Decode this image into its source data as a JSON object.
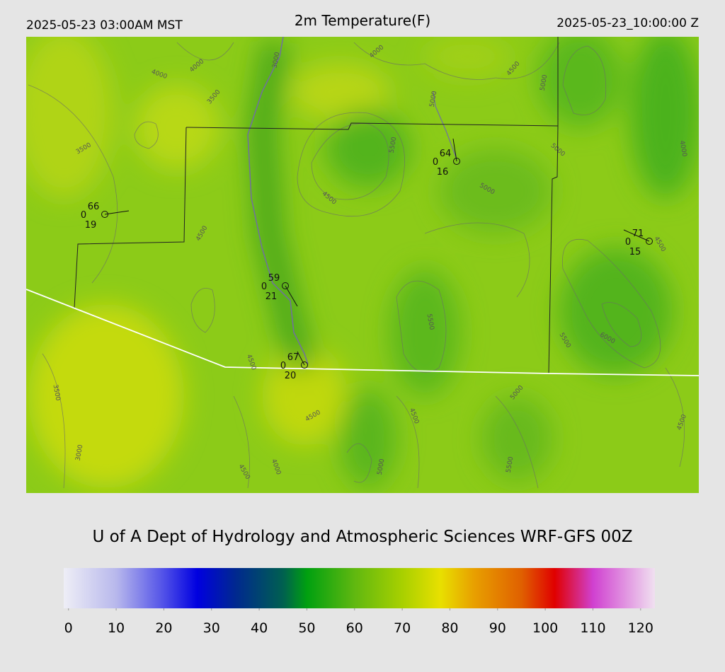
{
  "header": {
    "local_time": "2025-05-23 03:00AM MST",
    "title": "2m Temperature(F)",
    "valid_time": "2025-05-23_10:00:00 Z"
  },
  "contour_labels": [
    "4000",
    "4000",
    "3500",
    "3000",
    "4000",
    "4500",
    "5000",
    "5000",
    "3500",
    "5500",
    "4500",
    "5000",
    "5000",
    "4000",
    "4500",
    "4500",
    "5500",
    "6000",
    "5500",
    "4500",
    "5000",
    "3500",
    "4500",
    "4500",
    "4500",
    "3000",
    "4500",
    "4000",
    "5000",
    "5500"
  ],
  "stations": [
    {
      "temperature": 66,
      "wind": 0,
      "dewpoint": 19
    },
    {
      "temperature": 64,
      "wind": 0,
      "dewpoint": 16
    },
    {
      "temperature": 71,
      "wind": 0,
      "dewpoint": 15
    },
    {
      "temperature": 59,
      "wind": 0,
      "dewpoint": 21
    },
    {
      "temperature": 67,
      "wind": 0,
      "dewpoint": 20
    }
  ],
  "footer": "U of A Dept of Hydrology and Atmospheric Sciences WRF-GFS 00Z",
  "colorbar": {
    "lim": [
      -1,
      123
    ],
    "ticks": [
      0,
      10,
      20,
      30,
      40,
      50,
      60,
      70,
      80,
      90,
      100,
      110,
      120
    ],
    "stops": [
      {
        "value": -1,
        "color": "#eeeef6"
      },
      {
        "value": 10,
        "color": "#b8b8ec"
      },
      {
        "value": 20,
        "color": "#5050e8"
      },
      {
        "value": 27,
        "color": "#0000e0"
      },
      {
        "value": 35,
        "color": "#002890"
      },
      {
        "value": 45,
        "color": "#006050"
      },
      {
        "value": 50,
        "color": "#00a010"
      },
      {
        "value": 60,
        "color": "#60b810"
      },
      {
        "value": 70,
        "color": "#a8d000"
      },
      {
        "value": 78,
        "color": "#e8e000"
      },
      {
        "value": 85,
        "color": "#e8a000"
      },
      {
        "value": 95,
        "color": "#e06000"
      },
      {
        "value": 102,
        "color": "#e00000"
      },
      {
        "value": 110,
        "color": "#d040d0"
      },
      {
        "value": 123,
        "color": "#f0e0f0"
      }
    ]
  }
}
